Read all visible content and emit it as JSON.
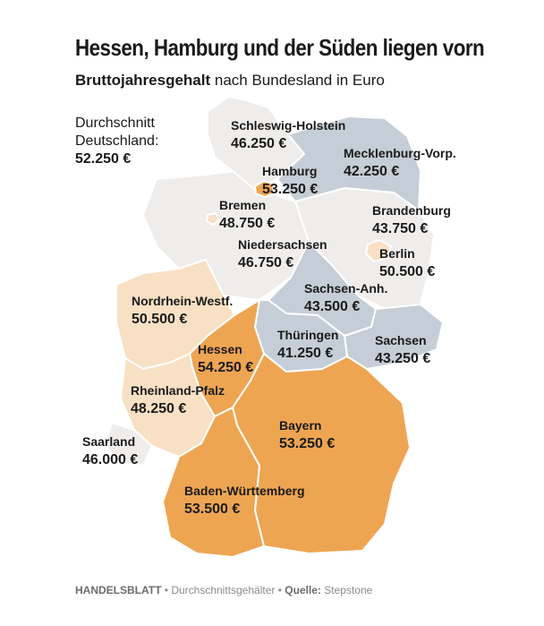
{
  "title": "Hessen, Hamburg und der Süden liegen vorn",
  "subtitle": {
    "bold": "Bruttojahresgehalt",
    "rest": " nach Bundesland in Euro"
  },
  "average": {
    "line1": "Durchschnitt",
    "line2": "Deutschland:",
    "value": "52.250 €"
  },
  "colors": {
    "above": "#eea552",
    "slightly_below": "#f7e0c3",
    "below": "#efedeb",
    "lowest": "#c5ced6",
    "border": "#ffffff"
  },
  "states": [
    {
      "name": "Schleswig-Holstein",
      "value": "46.250 €",
      "category": "below"
    },
    {
      "name": "Mecklenburg-Vorp.",
      "value": "42.250 €",
      "category": "lowest"
    },
    {
      "name": "Hamburg",
      "value": "53.250 €",
      "category": "above"
    },
    {
      "name": "Bremen",
      "value": "48.750 €",
      "category": "slightly_below"
    },
    {
      "name": "Brandenburg",
      "value": "43.750 €",
      "category": "below"
    },
    {
      "name": "Niedersachsen",
      "value": "46.750 €",
      "category": "below"
    },
    {
      "name": "Berlin",
      "value": "50.500 €",
      "category": "slightly_below"
    },
    {
      "name": "Nordrhein-Westf.",
      "value": "50.500 €",
      "category": "slightly_below"
    },
    {
      "name": "Sachsen-Anh.",
      "value": "43.500 €",
      "category": "lowest"
    },
    {
      "name": "Thüringen",
      "value": "41.250 €",
      "category": "lowest"
    },
    {
      "name": "Sachsen",
      "value": "43.250 €",
      "category": "lowest"
    },
    {
      "name": "Hessen",
      "value": "54.250 €",
      "category": "above"
    },
    {
      "name": "Rheinland-Pfalz",
      "value": "48.250 €",
      "category": "slightly_below"
    },
    {
      "name": "Bayern",
      "value": "53.250 €",
      "category": "above"
    },
    {
      "name": "Saarland",
      "value": "46.000 €",
      "category": "below"
    },
    {
      "name": "Baden-Württemberg",
      "value": "53.500 €",
      "category": "above"
    }
  ],
  "footer": {
    "brand": "HANDELSBLATT",
    "sep1": " • ",
    "topic": "Durchschnittsgehälter",
    "sep2": " • ",
    "source_label": "Quelle:",
    "source": " Stepstone"
  }
}
